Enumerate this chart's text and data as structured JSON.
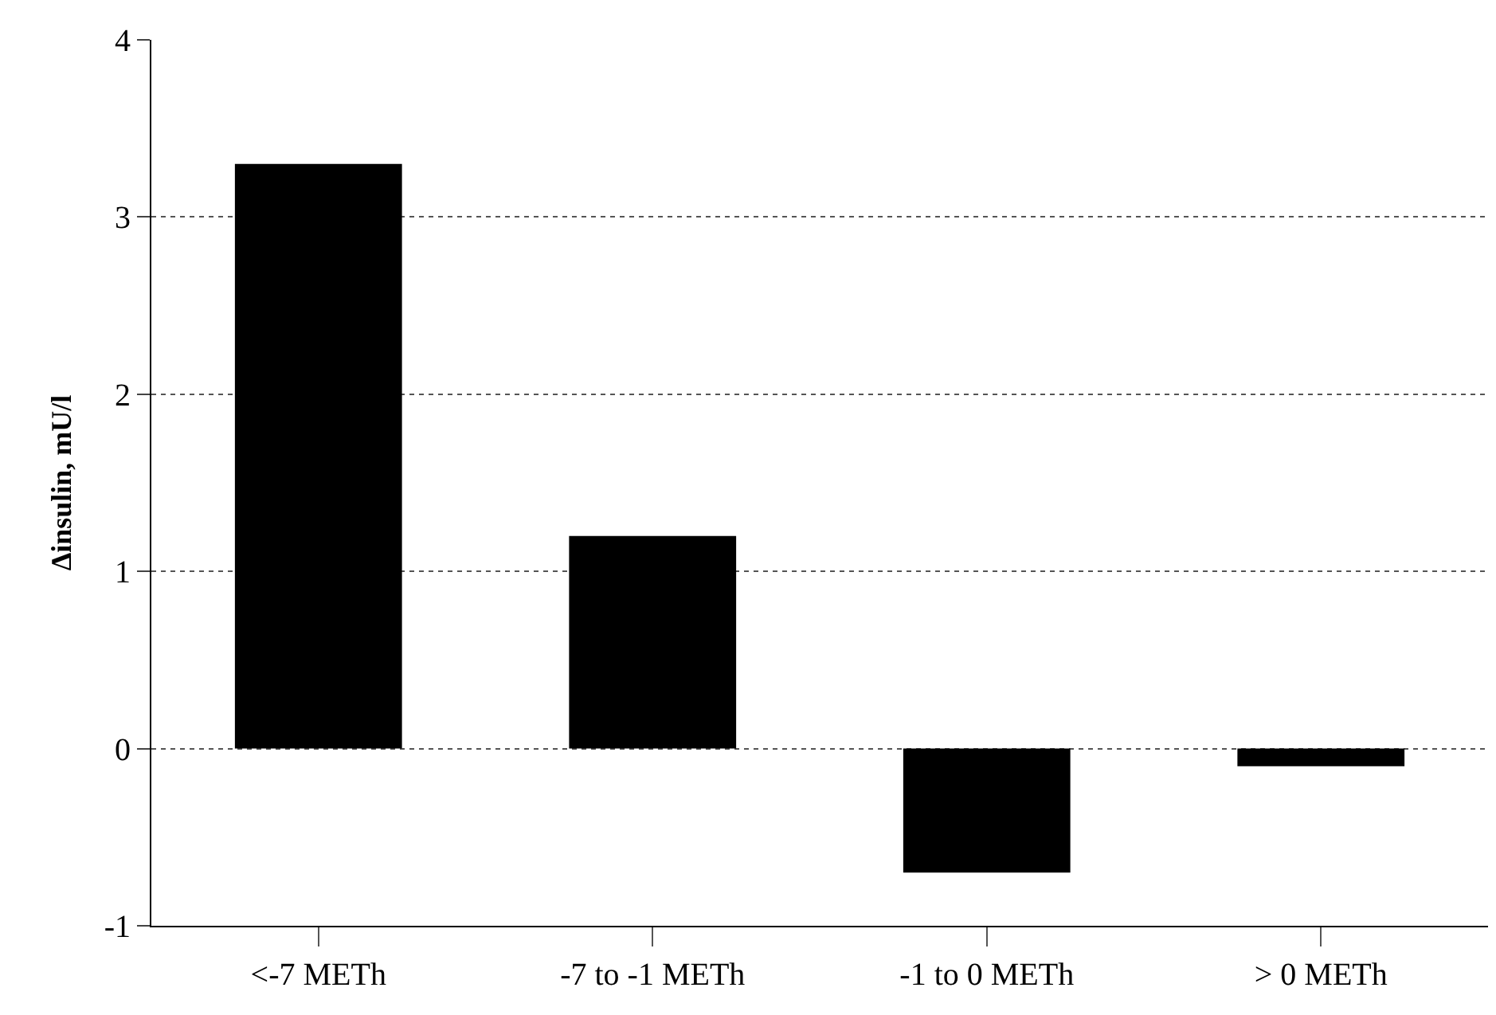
{
  "chart_data": {
    "type": "bar",
    "ylabel": "Δinsulin, mU/l",
    "categories": [
      "<-7 METh",
      "-7 to -1 METh",
      "-1 to 0 METh",
      "> 0 METh"
    ],
    "values": [
      3.3,
      1.2,
      -0.7,
      -0.1
    ],
    "color": "#000000",
    "ylim": [
      -1,
      4
    ],
    "yticks": [
      -1,
      0,
      1,
      2,
      3,
      4
    ],
    "grid": "y",
    "legend": false
  }
}
